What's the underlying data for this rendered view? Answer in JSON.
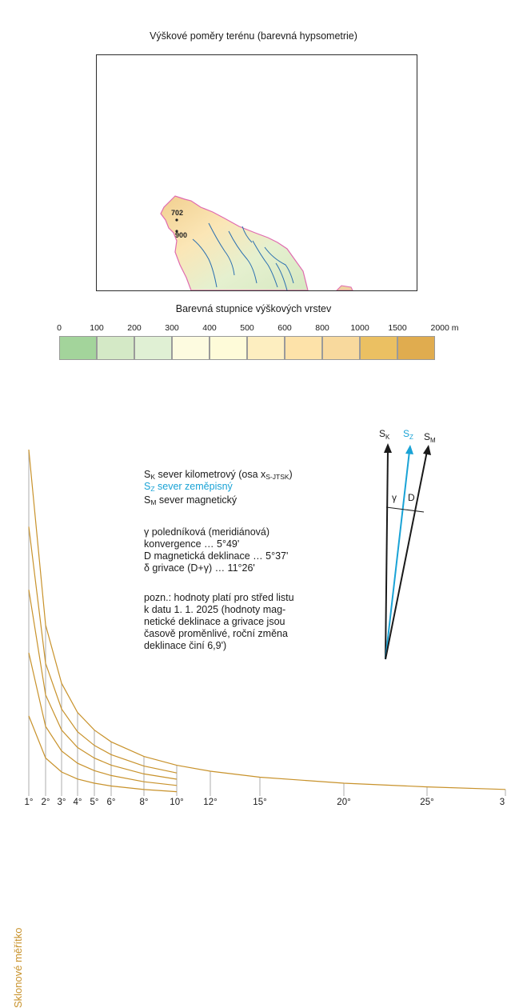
{
  "map": {
    "title": "Výškové poměry terénu (barevná hypsometrie)",
    "spot_heights": [
      "702",
      "900"
    ]
  },
  "legend": {
    "title": "Barevná stupnice výškových vrstev",
    "ticks": [
      "0",
      "100",
      "200",
      "300",
      "400",
      "500",
      "600",
      "800",
      "1000",
      "1500",
      "2000 m"
    ],
    "colors": [
      "#a3d49b",
      "#d4e9c6",
      "#e0f0d4",
      "#fdfbe0",
      "#fefbd9",
      "#fdeec0",
      "#fde2a9",
      "#f8d99d",
      "#ebc062",
      "#e0ac4f",
      "#c68c45"
    ]
  },
  "declination": {
    "arrow_labels": {
      "sk": "S",
      "sk_sub": "K",
      "sz": "S",
      "sz_sub": "Z",
      "sm": "S",
      "sm_sub": "M",
      "gamma": "γ",
      "d": "D"
    },
    "lines": {
      "sk_main": "S",
      "sk_sub": "K",
      "sk_text": " sever kilometrový (osa x",
      "sk_axis_sub": "S-JTSK",
      "sk_close": ")",
      "sz_main": "S",
      "sz_sub": "Z",
      "sz_text": " sever zeměpisný",
      "sm_main": "S",
      "sm_sub": "M",
      "sm_text": " sever magnetický",
      "gamma_1": "γ poledníková (meridiánová)",
      "gamma_2": "konvergence … 5°49'",
      "d_line": "D magnetická deklinace … 5°37'",
      "delta_line": "δ grivace (D+γ) … 11°26'",
      "note_1": "pozn.: hodnoty platí pro střed listu",
      "note_2": "k datu 1. 1. 2025 (hodnoty mag-",
      "note_3": "netické deklinace a grivace jsou",
      "note_4": "časově proměnlivé, roční změna",
      "note_5": "deklinace činí 6,9')"
    },
    "colors": {
      "sk": "#1a1a1a",
      "sz": "#1aa3d6",
      "sm": "#1a1a1a"
    }
  },
  "slope_scale": {
    "label": "Sklonové měřítko",
    "color": "#c8922b",
    "ticks": [
      "1°",
      "2°",
      "3°",
      "4°",
      "5°",
      "6°",
      "8°",
      "10°",
      "12°",
      "15°",
      "20°",
      "25°",
      "3"
    ]
  }
}
